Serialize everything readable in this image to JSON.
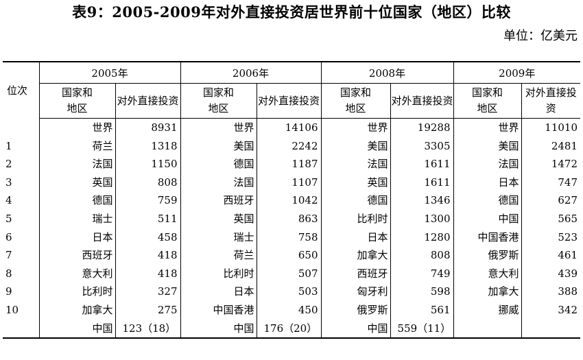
{
  "title": "表9：2005-2009年对外直接投资居世界前十位国家（地区）比较",
  "unit": "单位：亿美元",
  "header": {
    "rank": "位次",
    "years": [
      "2005年",
      "2006年",
      "2008年",
      "2009年"
    ],
    "country_col": "国家和地区",
    "value_col": "对外直接投资"
  },
  "rows": [
    {
      "rank": "",
      "cells": [
        [
          "世界",
          "8931"
        ],
        [
          "世界",
          "14106"
        ],
        [
          "世界",
          "19288"
        ],
        [
          "世界",
          "11010"
        ]
      ]
    },
    {
      "rank": "1",
      "cells": [
        [
          "荷兰",
          "1318"
        ],
        [
          "美国",
          "2242"
        ],
        [
          "美国",
          "3305"
        ],
        [
          "美国",
          "2481"
        ]
      ]
    },
    {
      "rank": "2",
      "cells": [
        [
          "法国",
          "1150"
        ],
        [
          "德国",
          "1187"
        ],
        [
          "法国",
          "1611"
        ],
        [
          "法国",
          "1472"
        ]
      ]
    },
    {
      "rank": "3",
      "cells": [
        [
          "英国",
          "808"
        ],
        [
          "法国",
          "1107"
        ],
        [
          "英国",
          "1611"
        ],
        [
          "日本",
          "747"
        ]
      ]
    },
    {
      "rank": "4",
      "cells": [
        [
          "德国",
          "759"
        ],
        [
          "西班牙",
          "1042"
        ],
        [
          "德国",
          "1346"
        ],
        [
          "德国",
          "627"
        ]
      ]
    },
    {
      "rank": "5",
      "cells": [
        [
          "瑞士",
          "511"
        ],
        [
          "英国",
          "863"
        ],
        [
          "比利时",
          "1300"
        ],
        [
          "中国",
          "565"
        ]
      ]
    },
    {
      "rank": "6",
      "cells": [
        [
          "日本",
          "458"
        ],
        [
          "瑞士",
          "758"
        ],
        [
          "日本",
          "1280"
        ],
        [
          "中国香港",
          "523"
        ]
      ]
    },
    {
      "rank": "7",
      "cells": [
        [
          "西班牙",
          "418"
        ],
        [
          "荷兰",
          "650"
        ],
        [
          "加拿大",
          "808"
        ],
        [
          "俄罗斯",
          "461"
        ]
      ]
    },
    {
      "rank": "8",
      "cells": [
        [
          "意大利",
          "418"
        ],
        [
          "比利时",
          "507"
        ],
        [
          "西班牙",
          "749"
        ],
        [
          "意大利",
          "439"
        ]
      ]
    },
    {
      "rank": "9",
      "cells": [
        [
          "比利时",
          "327"
        ],
        [
          "日本",
          "503"
        ],
        [
          "匈牙利",
          "598"
        ],
        [
          "加拿大",
          "388"
        ]
      ]
    },
    {
      "rank": "10",
      "cells": [
        [
          "加拿大",
          "275"
        ],
        [
          "中国香港",
          "450"
        ],
        [
          "俄罗斯",
          "561"
        ],
        [
          "挪威",
          "342"
        ]
      ]
    }
  ],
  "china_row": [
    [
      "中国",
      "123（18）"
    ],
    [
      "中国",
      "176（20）"
    ],
    [
      "中国",
      "559（11）"
    ],
    [
      "",
      ""
    ]
  ]
}
